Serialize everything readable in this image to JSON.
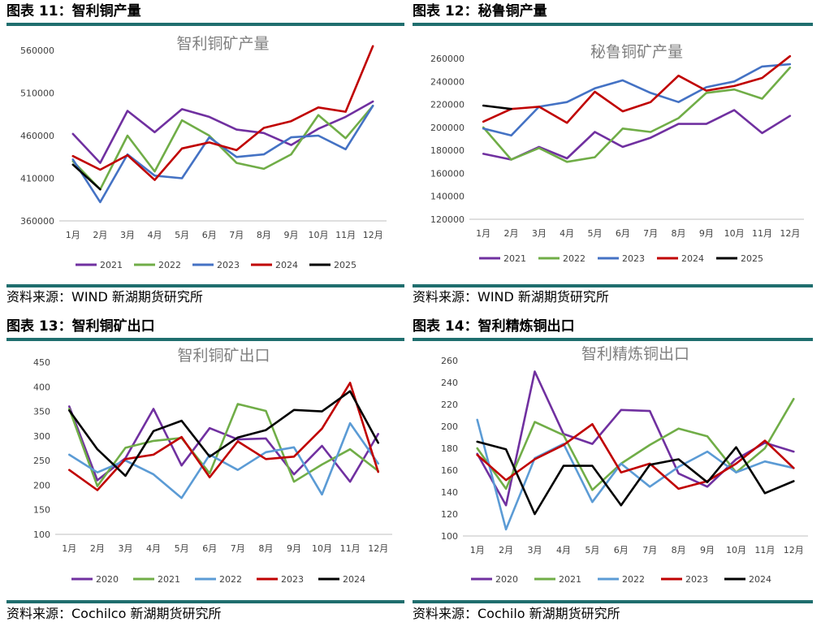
{
  "panels": [
    {
      "fig_label": "图表 11：智利铜产量",
      "source": "资料来源：WIND 新湖期货研究所",
      "chart_data": {
        "type": "line",
        "title": "智利铜矿产量",
        "categories": [
          "1月",
          "2月",
          "3月",
          "4月",
          "5月",
          "6月",
          "7月",
          "8月",
          "9月",
          "10月",
          "11月",
          "12月"
        ],
        "ylim": [
          360000,
          560000
        ],
        "yticks": [
          360000,
          410000,
          460000,
          510000,
          560000
        ],
        "series": [
          {
            "name": "2021",
            "color": "#7030a0",
            "values": [
              462000,
              428000,
              489000,
              464000,
              491000,
              482000,
              467000,
              463000,
              449000,
              468000,
              482000,
              500000
            ]
          },
          {
            "name": "2022",
            "color": "#70ad47",
            "values": [
              430000,
              397000,
              460000,
              418000,
              478000,
              460000,
              428000,
              421000,
              438000,
              484000,
              457000,
              495000
            ]
          },
          {
            "name": "2023",
            "color": "#4472c4",
            "values": [
              432000,
              382000,
              438000,
              413000,
              410000,
              458000,
              435000,
              438000,
              458000,
              460000,
              444000,
              495000
            ]
          },
          {
            "name": "2024",
            "color": "#c00000",
            "values": [
              436000,
              420000,
              437000,
              408000,
              445000,
              452000,
              443000,
              469000,
              477000,
              493000,
              488000,
              565000
            ]
          },
          {
            "name": "2025",
            "color": "#000000",
            "values": [
              426000,
              397000,
              null,
              null,
              null,
              null,
              null,
              null,
              null,
              null,
              null,
              null
            ]
          }
        ]
      }
    },
    {
      "fig_label": "图表 12：秘鲁铜产量",
      "source": "资料来源：WIND 新湖期货研究所",
      "chart_data": {
        "type": "line",
        "title": "秘鲁铜矿产量",
        "categories": [
          "1月",
          "2月",
          "3月",
          "4月",
          "5月",
          "6月",
          "7月",
          "8月",
          "9月",
          "10月",
          "11月",
          "12月"
        ],
        "ylim": [
          120000,
          260000
        ],
        "yticks": [
          120000,
          140000,
          160000,
          180000,
          200000,
          220000,
          240000,
          260000
        ],
        "series": [
          {
            "name": "2021",
            "color": "#7030a0",
            "values": [
              177000,
              172000,
              183000,
              173000,
              196000,
              183000,
              191000,
              203000,
              203000,
              215000,
              195000,
              210000
            ]
          },
          {
            "name": "2022",
            "color": "#70ad47",
            "values": [
              200000,
              172000,
              182000,
              170000,
              174000,
              199000,
              196000,
              208000,
              230000,
              233000,
              225000,
              252000
            ]
          },
          {
            "name": "2023",
            "color": "#4472c4",
            "values": [
              199000,
              193000,
              218000,
              222000,
              234000,
              241000,
              230000,
              222000,
              235000,
              240000,
              253000,
              255000
            ]
          },
          {
            "name": "2024",
            "color": "#c00000",
            "values": [
              205000,
              216000,
              218000,
              204000,
              231000,
              214000,
              222000,
              245000,
              232000,
              236000,
              243000,
              262000
            ]
          },
          {
            "name": "2025",
            "color": "#000000",
            "values": [
              219000,
              216000,
              null,
              null,
              null,
              null,
              null,
              null,
              null,
              null,
              null,
              null
            ]
          }
        ]
      }
    },
    {
      "fig_label": "图表 13：智利铜矿出口",
      "source": "资料来源：Cochilco 新湖期货研究所",
      "chart_data": {
        "type": "line",
        "title": "智利铜矿出口",
        "categories": [
          "1月",
          "2月",
          "3月",
          "4月",
          "5月",
          "6月",
          "7月",
          "8月",
          "9月",
          "10月",
          "11月",
          "12月"
        ],
        "ylim": [
          100,
          450
        ],
        "yticks": [
          100,
          150,
          200,
          250,
          300,
          350,
          400,
          450
        ],
        "series": [
          {
            "name": "2020",
            "color": "#7030a0",
            "values": [
              360,
              210,
              255,
              355,
              240,
              316,
              293,
              295,
              222,
              280,
              207,
              304
            ]
          },
          {
            "name": "2021",
            "color": "#70ad47",
            "values": [
              355,
              198,
              276,
              290,
              296,
              224,
              365,
              351,
              207,
              242,
              273,
              229
            ]
          },
          {
            "name": "2022",
            "color": "#5b9bd5",
            "values": [
              262,
              226,
              250,
              222,
              174,
              262,
              231,
              267,
              277,
              181,
              326,
              244
            ]
          },
          {
            "name": "2023",
            "color": "#c00000",
            "values": [
              231,
              190,
              253,
              262,
              298,
              216,
              289,
              253,
              258,
              315,
              408,
              227
            ]
          },
          {
            "name": "2024",
            "color": "#000000",
            "values": [
              352,
              273,
              219,
              310,
              331,
              258,
              297,
              312,
              353,
              350,
              391,
              286
            ]
          }
        ]
      }
    },
    {
      "fig_label": "图表 14：智利精炼铜出口",
      "source": "资料来源：Cochilo 新湖期货研究所",
      "chart_data": {
        "type": "line",
        "title": "智利精炼铜出口",
        "categories": [
          "1月",
          "2月",
          "3月",
          "4月",
          "5月",
          "6月",
          "7月",
          "8月",
          "9月",
          "10月",
          "11月",
          "12月"
        ],
        "ylim": [
          100,
          260
        ],
        "yticks": [
          100,
          120,
          140,
          160,
          180,
          200,
          220,
          240,
          260
        ],
        "series": [
          {
            "name": "2020",
            "color": "#7030a0",
            "values": [
              175,
              128,
              250,
              193,
              184,
              215,
              214,
              157,
              145,
              170,
              185,
              177
            ]
          },
          {
            "name": "2021",
            "color": "#70ad47",
            "values": [
              180,
              143,
              204,
              192,
              142,
              166,
              183,
              198,
              191,
              158,
              180,
              225
            ]
          },
          {
            "name": "2022",
            "color": "#5b9bd5",
            "values": [
              206,
              106,
              171,
              184,
              131,
              166,
              145,
              163,
              177,
              158,
              168,
              162
            ]
          },
          {
            "name": "2023",
            "color": "#c00000",
            "values": [
              174,
              151,
              170,
              183,
              202,
              158,
              166,
              143,
              150,
              166,
              187,
              162
            ]
          },
          {
            "name": "2024",
            "color": "#000000",
            "values": [
              186,
              179,
              120,
              164,
              164,
              128,
              165,
              170,
              149,
              181,
              139,
              150
            ]
          }
        ]
      }
    }
  ]
}
